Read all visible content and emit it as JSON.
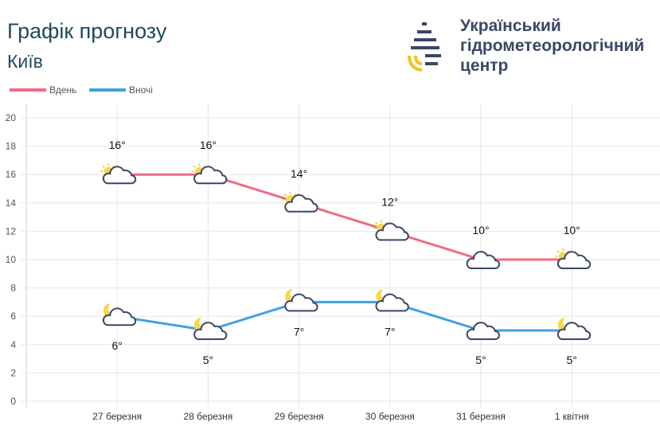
{
  "header": {
    "title": "Графік прогнозу",
    "city": "Київ"
  },
  "org": {
    "line1": "Український",
    "line2": "гідрометеорологічний",
    "line3": "центр"
  },
  "colors": {
    "day": "#ef6b84",
    "night": "#3fa2dd",
    "grid": "#e6e6e6",
    "text": "#555555"
  },
  "chart_data": {
    "type": "line",
    "categories": [
      "27 березня",
      "28 березня",
      "29 березня",
      "30 березня",
      "31 березня",
      "1 квітня"
    ],
    "series": [
      {
        "name": "Вдень",
        "values": [
          16,
          16,
          14,
          12,
          10,
          10
        ],
        "labels": [
          "16°",
          "16°",
          "14°",
          "12°",
          "10°",
          "10°"
        ],
        "icons": [
          "partly-sunny",
          "partly-sunny",
          "partly-sunny",
          "partly-sunny",
          "cloud",
          "partly-sunny"
        ]
      },
      {
        "name": "Вночі",
        "values": [
          6,
          5,
          7,
          7,
          5,
          5
        ],
        "labels": [
          "6°",
          "5°",
          "7°",
          "7°",
          "5°",
          "5°"
        ],
        "icons": [
          "partly-cloudy-night",
          "partly-cloudy-night",
          "partly-cloudy-night",
          "partly-cloudy-night",
          "cloud",
          "partly-cloudy-night"
        ]
      }
    ],
    "yticks": [
      0,
      2,
      4,
      6,
      8,
      10,
      12,
      14,
      16,
      18,
      20
    ],
    "ylim": [
      0,
      20
    ],
    "grid": true,
    "legend": "top-left"
  }
}
